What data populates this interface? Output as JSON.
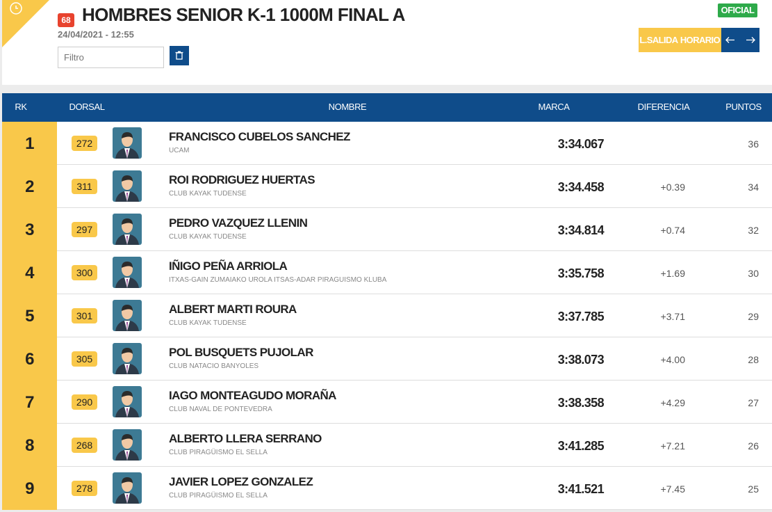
{
  "header": {
    "badge": "68",
    "title": "HOMBRES SENIOR K-1 1000M FINAL A",
    "datetime": "24/04/2021 - 12:55",
    "filter_placeholder": "Filtro",
    "status": "OFICIAL",
    "buttons": [
      "L.SALIDA",
      "HORARIO"
    ]
  },
  "table": {
    "columns": [
      "RK",
      "DORSAL",
      "NOMBRE",
      "MARCA",
      "DIFERENCIA",
      "PUNTOS"
    ],
    "rows": [
      {
        "rk": 1,
        "dorsal": 272,
        "name": "FRANCISCO CUBELOS SANCHEZ",
        "club": "UCAM",
        "time": "3:34.067",
        "points": 36
      },
      {
        "rk": 2,
        "dorsal": 311,
        "name": "ROI RODRIGUEZ HUERTAS",
        "club": "CLUB KAYAK TUDENSE",
        "time": "3:34.458",
        "diff": "+0.39",
        "points": 34
      },
      {
        "rk": 3,
        "dorsal": 297,
        "name": "PEDRO VAZQUEZ LLENIN",
        "club": "CLUB KAYAK TUDENSE",
        "time": "3:34.814",
        "diff": "+0.74",
        "points": 32
      },
      {
        "rk": 4,
        "dorsal": 300,
        "name": "IÑIGO PEÑA ARRIOLA",
        "club": "ITXAS-GAIN ZUMAIAKO UROLA ITSAS-ADAR PIRAGUISMO KLUBA",
        "time": "3:35.758",
        "diff": "+1.69",
        "points": 30
      },
      {
        "rk": 5,
        "dorsal": 301,
        "name": "ALBERT MARTI ROURA",
        "club": "CLUB KAYAK TUDENSE",
        "time": "3:37.785",
        "diff": "+3.71",
        "points": 29
      },
      {
        "rk": 6,
        "dorsal": 305,
        "name": "POL BUSQUETS PUJOLAR",
        "club": "CLUB NATACIO BANYOLES",
        "time": "3:38.073",
        "diff": "+4.00",
        "points": 28
      },
      {
        "rk": 7,
        "dorsal": 290,
        "name": "IAGO MONTEAGUDO MORAÑA",
        "club": "CLUB NAVAL DE PONTEVEDRA",
        "time": "3:38.358",
        "diff": "+4.29",
        "points": 27
      },
      {
        "rk": 8,
        "dorsal": 268,
        "name": "ALBERTO LLERA SERRANO",
        "club": "CLUB PIRAGÜISMO EL SELLA",
        "time": "3:41.285",
        "diff": "+7.21",
        "points": 26
      },
      {
        "rk": 9,
        "dorsal": 278,
        "name": "JAVIER LOPEZ GONZALEZ",
        "club": "CLUB PIRAGÜISMO EL SELLA",
        "time": "3:41.521",
        "diff": "+7.45",
        "points": 25
      }
    ]
  }
}
